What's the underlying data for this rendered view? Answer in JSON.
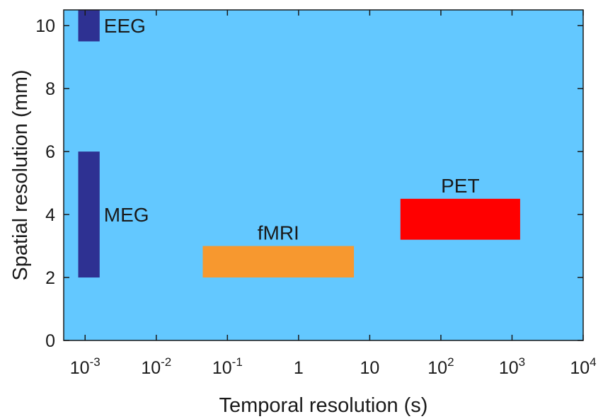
{
  "chart_data": {
    "type": "bar",
    "title": "",
    "xlabel": "Temporal resolution (s)",
    "ylabel": "Spatial resolution (mm)",
    "x_scale": "log",
    "xlim": [
      0.0005,
      10000
    ],
    "ylim": [
      0,
      10.5
    ],
    "grid": false,
    "x_ticks": [
      {
        "value": 0.001,
        "base": "10",
        "exp": "-3"
      },
      {
        "value": 0.01,
        "base": "10",
        "exp": "-2"
      },
      {
        "value": 0.1,
        "base": "10",
        "exp": "-1"
      },
      {
        "value": 1,
        "base": "1",
        "exp": ""
      },
      {
        "value": 10,
        "base": "10",
        "exp": ""
      },
      {
        "value": 100,
        "base": "10",
        "exp": "2"
      },
      {
        "value": 1000,
        "base": "10",
        "exp": "3"
      },
      {
        "value": 10000,
        "base": "10",
        "exp": "4"
      }
    ],
    "y_ticks": [
      0,
      2,
      4,
      6,
      8,
      10
    ],
    "modalities": [
      {
        "label": "EEG",
        "x_range": [
          0.0008,
          0.0016
        ],
        "y_range": [
          9.5,
          10.5
        ],
        "color": "#2e3192",
        "label_pos": "right"
      },
      {
        "label": "MEG",
        "x_range": [
          0.0008,
          0.0016
        ],
        "y_range": [
          2,
          6
        ],
        "color": "#2e3192",
        "label_pos": "right"
      },
      {
        "label": "fMRI",
        "x_range": [
          0.045,
          6
        ],
        "y_range": [
          2,
          3
        ],
        "color": "#f7982f",
        "label_pos": "top"
      },
      {
        "label": "PET",
        "x_range": [
          27,
          1300
        ],
        "y_range": [
          3.2,
          4.5
        ],
        "color": "#ff0000",
        "label_pos": "top"
      }
    ],
    "colors": {
      "plot_background": "#63c8ff",
      "axis": "#1a1a1a"
    }
  }
}
